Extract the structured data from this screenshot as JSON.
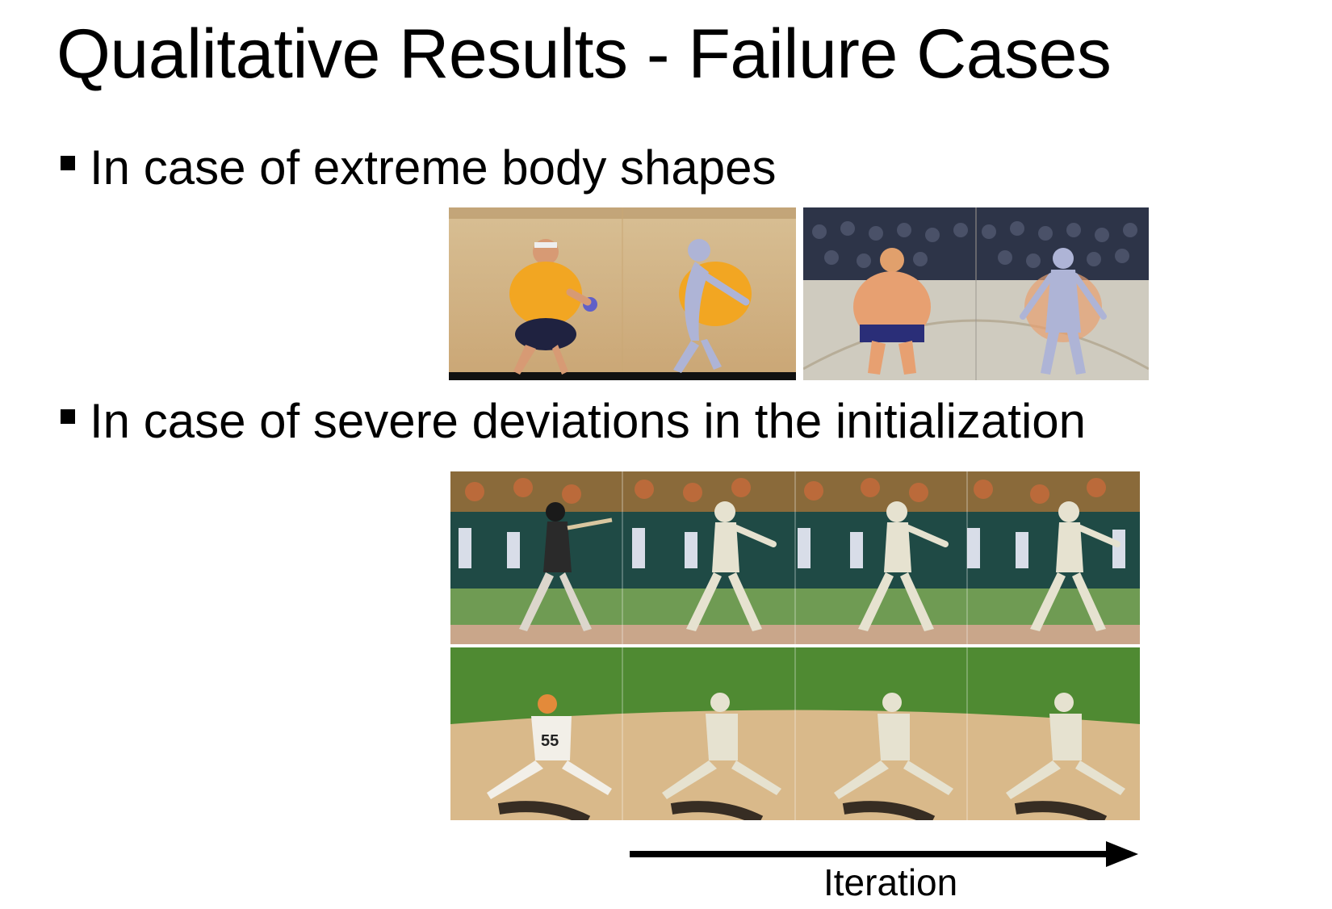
{
  "slide": {
    "title": "Qualitative Results - Failure Cases",
    "bullets": [
      "In case of extreme body shapes",
      "In case of severe deviations in the initialization"
    ],
    "arrow_label": "Iteration"
  },
  "figures": {
    "extreme_shapes": [
      "beach-volleyball-input",
      "beach-volleyball-fit",
      "sumo-input",
      "sumo-fit"
    ],
    "initialization_rows": [
      {
        "subject": "batter",
        "frames": 4
      },
      {
        "subject": "pitcher",
        "frames": 4,
        "jersey_number": "55"
      }
    ]
  },
  "colors": {
    "mesh": "#e6e2d0",
    "shape_mesh": "#aeb4d6",
    "sand": "#d9b98a",
    "grass": "#4f8a32",
    "crowd": "#2d3448",
    "arrow": "#000000"
  }
}
